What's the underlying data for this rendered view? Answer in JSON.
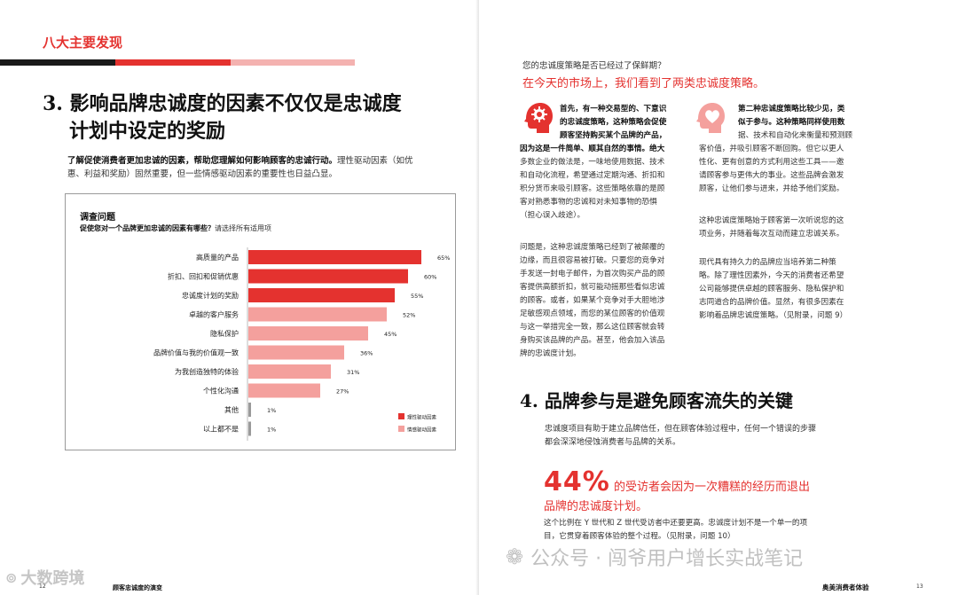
{
  "left_page": {
    "section_label": "八大主要发现",
    "heading_line1": "3. 影响品牌忠诚度的因素不仅仅是忠诚度",
    "heading_line2": "计划中设定的奖励",
    "intro_bold": "了解促使消费者更加忠诚的因素，帮助您理解如何影响顾客的忠诚行动。",
    "intro_rest1": "理性驱动因素（如优",
    "intro_rest2": "惠、利益和奖励）固然重要，但一些情感驱动因素的重要性也日益凸显。",
    "survey_title": "调查问题",
    "survey_question_bold": "促使您对一个品牌更加忠诚的因素有哪些？",
    "survey_question_rest": "请选择所有适用项",
    "page_number": "12",
    "footer_title": "顾客忠诚度的演变"
  },
  "chart_data": {
    "type": "bar",
    "orientation": "horizontal",
    "title": "促使您对一个品牌更加忠诚的因素有哪些？",
    "categories": [
      "高质量的产品",
      "折扣、回扣和促销优惠",
      "忠诚度计划的奖励",
      "卓越的客户服务",
      "隐私保护",
      "品牌价值与我的价值观一致",
      "为我创造独特的体验",
      "个性化沟通",
      "其他",
      "以上都不是"
    ],
    "values": [
      65,
      60,
      55,
      52,
      45,
      36,
      31,
      27,
      1,
      1
    ],
    "value_labels": [
      "65%",
      "60%",
      "55%",
      "52%",
      "45%",
      "36%",
      "31%",
      "27%",
      "1%",
      "1%"
    ],
    "driver": [
      "rational",
      "rational",
      "rational",
      "emotional",
      "emotional",
      "emotional",
      "emotional",
      "emotional",
      "other",
      "other"
    ],
    "legend": [
      {
        "name": "理性驱动因素",
        "color": "#e4322f"
      },
      {
        "name": "情感驱动因素",
        "color": "#f4a09d"
      }
    ],
    "other_color": "#9a9a9a",
    "xlim": [
      0,
      100
    ],
    "legend_position": "bottom-right"
  },
  "right_page": {
    "question": "您的忠诚度策略是否已经过了保鲜期？",
    "headline": "在今天的市场上，我们看到了两类忠诚度策略。",
    "col1_para1": [
      "首先，有一种交易型的、下意识",
      "的忠诚度策略，这种策略会促使",
      "顾客坚持购买某个品牌的产品，",
      "因为这是一件简单、顺其自然的事情。绝大",
      "多数企业的做法是，一味地使用数据、技术",
      "和自动化流程，希望通过定期沟通、折扣和",
      "积分货币来吸引顾客。这些策略依靠的是顾",
      "客对熟悉事物的忠诚和对未知事物的恐惧",
      "（担心误入歧途）。"
    ],
    "col1_para2": [
      "问题是，这种忠诚度策略已经到了被颠覆的",
      "边缘，而且很容易被打破。只要您的竞争对",
      "手发送一封电子邮件，为首次购买产品的顾",
      "客提供高额折扣，就可能动摇那些看似忠诚",
      "的顾客。或者，如果某个竞争对手大胆地涉",
      "足敏感观点领域，而您的某位顾客的价值观",
      "与这一举措完全一致，那么这位顾客就会转",
      "身购买该品牌的产品。甚至，他会加入该品",
      "牌的忠诚度计划。"
    ],
    "col2_para1": [
      "第二种忠诚度策略比较少见，类",
      "似于参与。这种策略同样使用数",
      "据、技术和自动化来衡量和预测顾",
      "客价值，并吸引顾客不断回购。但它以更人",
      "性化、更有创意的方式利用这些工具——邀",
      "请顾客参与更伟大的事业。这些品牌会激发",
      "顾客，让他们参与进来，并给予他们奖励。"
    ],
    "col2_para2": [
      "这种忠诚度策略始于顾客第一次听说您的这",
      "项业务，并随着每次互动而建立忠诚关系。"
    ],
    "col2_para3": [
      "现代具有持久力的品牌应当培养第二种策",
      "略。除了理性因素外，今天的消费者还希望",
      "公司能够提供卓越的顾客服务、隐私保护和",
      "志同道合的品牌价值。显然，有很多因素在",
      "影响着品牌忠诚度策略。（见附录，问题 9）"
    ],
    "heading4": "4. 品牌参与是避免顾客流失的关键",
    "h4_body1": "忠诚度项目有助于建立品牌信任，但在顾客体验过程中，任何一个错误的步骤",
    "h4_body2": "都会深深地侵蚀消费者与品牌的关系。",
    "stat_value": "44%",
    "stat_text1": "的受访者会因为一次糟糕的经历而退出",
    "stat_text2": "品牌的忠诚度计划。",
    "stat_body1": "这个比例在 Y 世代和 Z 世代受访者中还要更高。忠诚度计划不是一个单一的项",
    "stat_body2": "目，它贯穿着顾客体验的整个过程。（见附录，问题 10）",
    "footer_title": "奥美消费者体验",
    "page_number": "13"
  },
  "watermarks": {
    "left": "大数跨境",
    "right": "公众号 · 闯爷用户增长实战笔记"
  },
  "colors": {
    "accent": "#e4322f",
    "accent_light": "#f4a09d",
    "bar_dark": "#1a1a1a",
    "bar_pink": "#f4b2b0"
  }
}
